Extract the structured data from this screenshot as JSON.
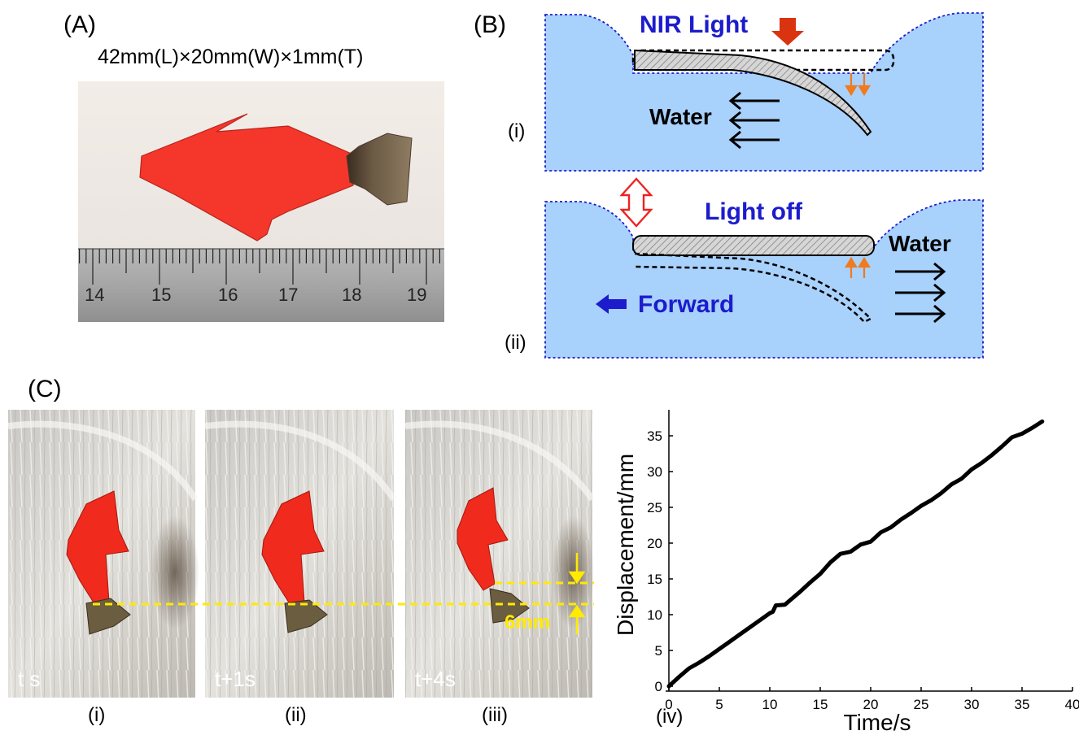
{
  "panel_a": {
    "label": "(A)",
    "dimensions": "42mm(L)×20mm(W)×1mm(T)",
    "ruler_ticks": [
      "14",
      "15",
      "16",
      "17",
      "18",
      "19"
    ]
  },
  "panel_b": {
    "label": "(B)",
    "top": {
      "sub_label": "(i)",
      "light_text": "NIR Light",
      "water_text": "Water"
    },
    "bottom": {
      "sub_label": "(ii)",
      "light_text": "Light off",
      "water_text": "Water",
      "forward_text": "Forward"
    },
    "colors": {
      "water": "#a8d1fb",
      "border": "#1c1ccc",
      "text_blue": "#1c1ccc",
      "arrow_red": "#d9330f",
      "arrow_orange": "#f07a1e"
    }
  },
  "panel_c": {
    "label": "(C)",
    "frames": [
      {
        "time": "t s",
        "sub_label": "(i)"
      },
      {
        "time": "t+1s",
        "sub_label": "(ii)"
      },
      {
        "time": "t+4s",
        "sub_label": "(iii)"
      }
    ],
    "measure_text": "6mm",
    "chart_sub_label": "(iv)"
  },
  "chart_data": {
    "type": "line",
    "xlabel": "Time/s",
    "ylabel": "Displacement/mm",
    "xlim": [
      0,
      40
    ],
    "ylim": [
      0,
      37
    ],
    "xticks": [
      0,
      5,
      10,
      15,
      20,
      25,
      30,
      35,
      40
    ],
    "yticks": [
      0,
      5,
      10,
      15,
      20,
      25,
      30,
      35
    ],
    "grid": false,
    "series": [
      {
        "x": [
          0,
          1,
          2,
          3,
          4,
          5,
          6,
          7,
          8,
          9,
          10,
          10.3,
          10.6,
          11.5,
          12,
          13,
          14,
          15,
          16,
          17,
          18,
          19,
          20,
          21,
          22,
          23,
          24,
          25,
          26,
          27,
          28,
          29,
          30,
          31,
          32,
          33,
          34,
          35,
          36,
          37
        ],
        "y": [
          0,
          1.3,
          2.5,
          3.3,
          4.2,
          5.2,
          6.2,
          7.2,
          8.2,
          9.2,
          10.2,
          10.4,
          11.3,
          11.4,
          12.0,
          13.2,
          14.5,
          15.7,
          17.3,
          18.5,
          18.8,
          19.8,
          20.2,
          21.5,
          22.2,
          23.3,
          24.2,
          25.2,
          26.0,
          27.0,
          28.2,
          29.0,
          30.3,
          31.2,
          32.3,
          33.5,
          34.8,
          35.3,
          36.1,
          37.0
        ]
      }
    ]
  }
}
